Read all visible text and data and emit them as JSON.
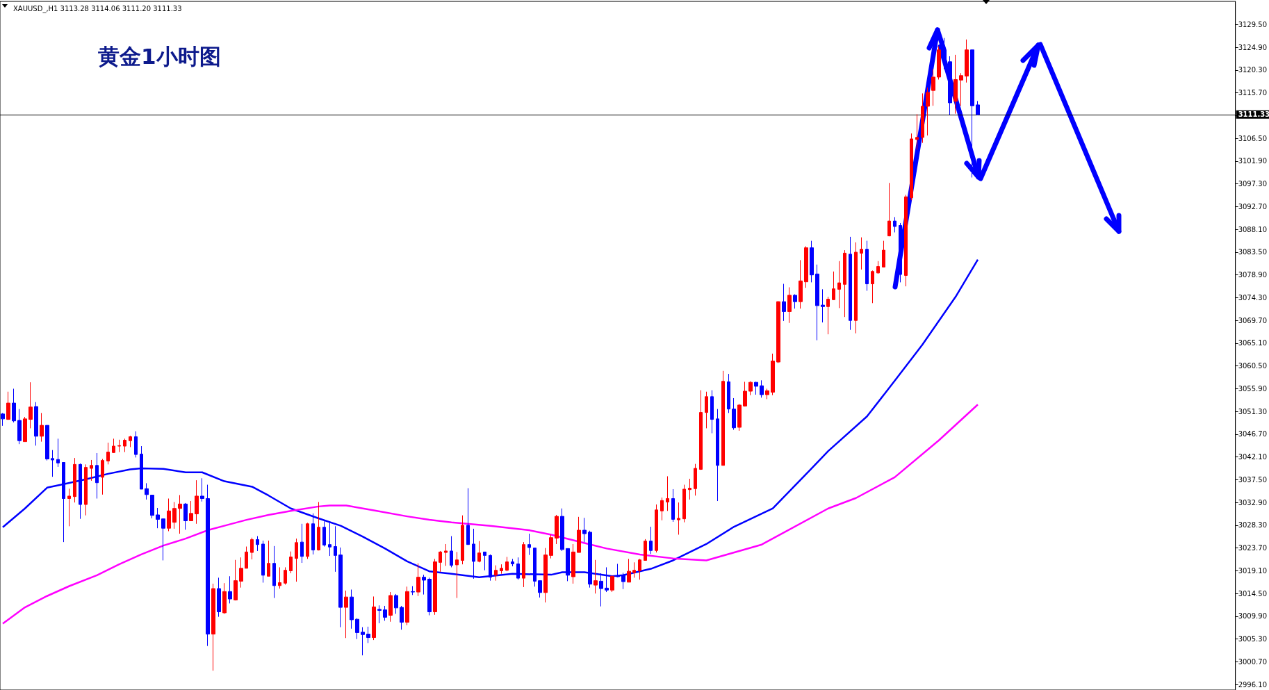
{
  "chart_data": {
    "type": "candlestick",
    "title": "黄金1小时图",
    "subtitle": "XAUUSD_,H1 3113.28 3114.06 3111.20 3111.33",
    "categories": [
      null,
      null,
      null,
      null,
      null,
      null,
      null,
      null,
      null,
      null,
      null,
      null,
      null,
      null,
      null,
      null,
      null,
      null,
      null,
      null,
      null,
      null,
      null,
      null,
      null,
      null,
      null,
      null,
      null,
      null,
      null,
      null,
      null,
      null,
      null,
      null,
      null,
      null,
      null,
      null,
      null,
      null,
      null,
      null,
      null,
      null,
      null,
      null,
      null,
      null,
      null,
      null,
      null,
      null,
      null,
      null,
      null,
      null,
      null,
      null,
      null,
      null,
      null,
      null,
      null,
      null,
      null,
      null,
      null,
      null,
      null,
      null,
      null,
      null,
      null,
      null,
      null,
      null,
      null,
      null,
      null,
      null,
      null,
      null,
      null,
      null,
      null,
      null,
      null,
      null,
      null,
      null,
      null,
      null,
      null,
      null,
      null,
      null,
      null,
      null,
      null,
      null,
      null,
      null,
      null,
      null,
      null,
      null,
      null,
      null,
      null,
      null,
      null,
      null,
      null,
      null,
      null,
      null,
      null,
      null,
      null,
      null,
      null,
      null,
      null,
      null,
      null,
      null,
      null,
      null,
      null,
      null,
      null,
      null,
      null,
      null,
      null,
      null,
      null,
      null,
      null,
      null,
      null,
      null,
      null,
      null,
      null,
      null,
      null,
      null,
      null,
      null,
      null,
      null,
      null,
      null,
      null,
      null,
      null,
      null,
      null,
      null,
      null,
      null,
      null,
      null,
      null,
      null,
      null,
      null,
      null,
      null,
      null,
      null,
      null,
      null,
      null,
      null,
      null,
      null,
      null,
      null,
      null,
      null,
      null,
      null,
      null,
      null,
      null,
      null,
      null,
      null,
      null,
      null,
      null,
      null,
      null,
      null,
      null,
      null,
      null,
      null,
      null,
      null,
      null,
      null,
      null,
      null,
      null,
      null,
      null,
      null,
      null,
      null,
      null,
      null,
      null,
      null,
      null,
      null,
      null,
      null,
      null
    ],
    "series": [
      {
        "ohlc": [
          [
            3050.8,
            3051.0,
            3048.4,
            3049.8
          ],
          [
            3049.7,
            3055.3,
            3049.6,
            3053.0
          ],
          [
            3053.0,
            3055.9,
            3049.1,
            3049.4
          ],
          [
            3049.5,
            3051.8,
            3044.7,
            3045.4
          ],
          [
            3045.2,
            3050.2,
            3045.2,
            3049.8
          ],
          [
            3049.7,
            3057.2,
            3047.9,
            3052.2
          ],
          [
            3052.3,
            3053.2,
            3044.4,
            3046.3
          ],
          [
            3046.3,
            3051.0,
            3045.2,
            3048.5
          ],
          [
            3048.5,
            3048.5,
            3041.4,
            3041.7
          ],
          [
            3041.8,
            3043.5,
            3038.1,
            3041.5
          ],
          [
            3041.6,
            3045.8,
            3040.1,
            3040.9
          ],
          [
            3041.0,
            3041.0,
            3024.9,
            3033.7
          ],
          [
            3033.7,
            3035.7,
            3028.1,
            3034.2
          ],
          [
            3034.1,
            3041.9,
            3032.9,
            3040.6
          ],
          [
            3040.6,
            3040.8,
            3029.6,
            3032.5
          ],
          [
            3032.5,
            3040.6,
            3030.3,
            3040.0
          ],
          [
            3039.8,
            3041.5,
            3037.3,
            3040.4
          ],
          [
            3040.4,
            3042.9,
            3033.7,
            3036.9
          ],
          [
            3038.0,
            3041.7,
            3034.5,
            3041.4
          ],
          [
            3041.3,
            3045.0,
            3040.6,
            3043.1
          ],
          [
            3043.0,
            3045.8,
            3042.9,
            3044.3
          ],
          [
            3044.3,
            3045.6,
            3043.1,
            3044.4
          ],
          [
            3044.3,
            3045.8,
            3043.1,
            3045.5
          ],
          [
            3045.4,
            3046.4,
            3044.1,
            3046.2
          ],
          [
            3046.2,
            3047.3,
            3042.0,
            3042.6
          ],
          [
            3042.7,
            3044.3,
            3035.6,
            3035.6
          ],
          [
            3035.7,
            3036.8,
            3033.5,
            3034.5
          ],
          [
            3034.4,
            3034.4,
            3029.7,
            3030.3
          ],
          [
            3030.4,
            3031.8,
            3027.7,
            3029.5
          ],
          [
            3029.6,
            3029.6,
            3021.2,
            3027.7
          ],
          [
            3027.7,
            3033.7,
            3027.1,
            3031.2
          ],
          [
            3028.9,
            3033.0,
            3027.6,
            3031.7
          ],
          [
            3031.7,
            3034.4,
            3026.6,
            3032.6
          ],
          [
            3032.6,
            3032.8,
            3027.4,
            3029.2
          ],
          [
            3029.2,
            3033.2,
            3029.2,
            3030.7
          ],
          [
            3030.6,
            3037.4,
            3028.6,
            3034.2
          ],
          [
            3034.2,
            3037.8,
            3033.1,
            3033.7
          ],
          [
            3033.7,
            3036.5,
            3003.9,
            3006.3
          ],
          [
            3006.3,
            3016.5,
            2998.9,
            3015.5
          ],
          [
            3015.5,
            3017.7,
            3009.8,
            3010.8
          ],
          [
            3010.6,
            3016.6,
            3010.4,
            3014.9
          ],
          [
            3014.9,
            3018.0,
            3012.5,
            3013.4
          ],
          [
            3013.2,
            3021.3,
            3013.1,
            3017.1
          ],
          [
            3017.0,
            3021.8,
            3015.7,
            3019.6
          ],
          [
            3019.6,
            3024.0,
            3019.6,
            3022.9
          ],
          [
            3022.8,
            3025.8,
            3021.4,
            3025.4
          ],
          [
            3025.4,
            3026.1,
            3023.1,
            3024.4
          ],
          [
            3024.5,
            3025.2,
            3016.7,
            3018.2
          ],
          [
            3018.0,
            3025.2,
            3018.0,
            3020.6
          ],
          [
            3020.6,
            3024.1,
            3013.6,
            3016.1
          ],
          [
            3016.1,
            3019.8,
            3015.5,
            3016.7
          ],
          [
            3016.6,
            3019.8,
            3016.3,
            3019.2
          ],
          [
            3019.1,
            3023.0,
            3018.6,
            3021.9
          ],
          [
            3021.6,
            3025.6,
            3016.9,
            3024.8
          ],
          [
            3024.9,
            3028.6,
            3020.7,
            3022.0
          ],
          [
            3022.0,
            3028.8,
            3021.5,
            3028.6
          ],
          [
            3028.6,
            3030.7,
            3022.4,
            3023.3
          ],
          [
            3023.3,
            3033.0,
            3023.2,
            3027.9
          ],
          [
            3027.9,
            3029.1,
            3024.0,
            3024.3
          ],
          [
            3024.4,
            3028.9,
            3022.1,
            3023.9
          ],
          [
            3024.0,
            3028.1,
            3018.9,
            3022.2
          ],
          [
            3022.3,
            3023.8,
            3007.7,
            3011.7
          ],
          [
            3011.7,
            3015.1,
            3005.5,
            3013.8
          ],
          [
            3013.8,
            3015.3,
            3007.4,
            3009.2
          ],
          [
            3009.3,
            3009.5,
            3005.3,
            3006.6
          ],
          [
            3006.7,
            3007.7,
            3002.0,
            3006.2
          ],
          [
            3006.3,
            3007.8,
            3004.5,
            3005.6
          ],
          [
            3005.6,
            3013.9,
            3005.1,
            3011.8
          ],
          [
            3011.3,
            3012.1,
            3008.5,
            3011.1
          ],
          [
            3011.2,
            3012.0,
            3009.0,
            3009.7
          ],
          [
            3010.1,
            3014.8,
            3008.8,
            3014.1
          ],
          [
            3014.1,
            3014.4,
            3010.4,
            3011.6
          ],
          [
            3011.7,
            3012.0,
            3007.2,
            3008.7
          ],
          [
            3008.7,
            3015.9,
            3008.1,
            3014.9
          ],
          [
            3014.9,
            3016.0,
            3014.2,
            3014.8
          ],
          [
            3014.8,
            3020.6,
            3014.0,
            3017.8
          ],
          [
            3017.8,
            3018.3,
            3014.3,
            3017.2
          ],
          [
            3017.4,
            3017.7,
            3010.1,
            3010.8
          ],
          [
            3010.8,
            3021.5,
            3010.2,
            3020.9
          ],
          [
            3020.8,
            3023.1,
            3018.9,
            3022.9
          ],
          [
            3022.8,
            3024.5,
            3020.1,
            3023.1
          ],
          [
            3023.1,
            3026.1,
            3019.8,
            3020.2
          ],
          [
            3020.3,
            3022.9,
            3013.6,
            3021.3
          ],
          [
            3021.2,
            3030.3,
            3020.4,
            3028.3
          ],
          [
            3028.3,
            3035.8,
            3024.4,
            3024.4
          ],
          [
            3024.5,
            3027.6,
            3017.5,
            3021.0
          ],
          [
            3021.0,
            3025.1,
            3020.8,
            3022.7
          ],
          [
            3022.9,
            3022.9,
            3019.2,
            3022.2
          ],
          [
            3022.2,
            3022.4,
            3017.1,
            3017.8
          ],
          [
            3018.2,
            3020.2,
            3017.1,
            3019.2
          ],
          [
            3019.1,
            3020.4,
            3018.5,
            3019.6
          ],
          [
            3019.2,
            3021.9,
            3019.0,
            3020.9
          ],
          [
            3020.9,
            3021.5,
            3020.0,
            3020.5
          ],
          [
            3020.5,
            3021.8,
            3017.3,
            3017.6
          ],
          [
            3017.6,
            3024.9,
            3015.8,
            3024.4
          ],
          [
            3024.4,
            3026.6,
            3022.3,
            3023.8
          ],
          [
            3023.7,
            3023.7,
            3015.9,
            3017.0
          ],
          [
            3017.1,
            3017.1,
            3013.7,
            3014.7
          ],
          [
            3014.7,
            3023.7,
            3012.7,
            3022.3
          ],
          [
            3022.2,
            3026.4,
            3021.6,
            3025.8
          ],
          [
            3025.7,
            3030.4,
            3024.5,
            3030.1
          ],
          [
            3030.1,
            3031.7,
            3023.1,
            3023.4
          ],
          [
            3023.6,
            3023.6,
            3017.0,
            3018.2
          ],
          [
            3017.9,
            3024.5,
            3016.5,
            3022.9
          ],
          [
            3022.8,
            3030.0,
            3022.8,
            3027.3
          ],
          [
            3027.3,
            3029.8,
            3024.9,
            3026.6
          ],
          [
            3026.9,
            3027.2,
            3015.7,
            3016.4
          ],
          [
            3016.2,
            3021.3,
            3014.5,
            3017.1
          ],
          [
            3017.0,
            3018.6,
            3011.9,
            3015.5
          ],
          [
            3015.6,
            3019.8,
            3014.8,
            3015.2
          ],
          [
            3015.2,
            3018.1,
            3014.8,
            3018.0
          ],
          [
            3018.1,
            3020.5,
            3017.8,
            3017.9
          ],
          [
            3018.2,
            3018.7,
            3015.4,
            3016.9
          ],
          [
            3016.8,
            3021.5,
            3016.8,
            3019.0
          ],
          [
            3018.7,
            3020.8,
            3017.7,
            3019.2
          ],
          [
            3019.1,
            3021.5,
            3017.3,
            3021.3
          ],
          [
            3021.2,
            3025.5,
            3021.2,
            3025.1
          ],
          [
            3025.1,
            3028.0,
            3022.5,
            3023.2
          ],
          [
            3023.2,
            3032.5,
            3022.8,
            3031.4
          ],
          [
            3031.2,
            3033.9,
            3029.3,
            3033.3
          ],
          [
            3033.0,
            3038.2,
            3031.2,
            3033.7
          ],
          [
            3033.7,
            3035.6,
            3029.0,
            3029.5
          ],
          [
            3029.4,
            3032.9,
            3026.4,
            3029.7
          ],
          [
            3029.6,
            3036.5,
            3028.9,
            3035.6
          ],
          [
            3035.5,
            3037.7,
            3033.5,
            3035.8
          ],
          [
            3035.7,
            3040.7,
            3034.3,
            3039.8
          ],
          [
            3039.6,
            3055.6,
            3039.5,
            3051.1
          ],
          [
            3051.1,
            3055.3,
            3047.9,
            3054.3
          ],
          [
            3054.3,
            3055.6,
            3046.9,
            3049.7
          ],
          [
            3049.8,
            3051.8,
            3033.2,
            3040.4
          ],
          [
            3040.4,
            3059.5,
            3040.4,
            3057.4
          ],
          [
            3057.3,
            3058.9,
            3051.0,
            3051.8
          ],
          [
            3051.8,
            3054.0,
            3047.6,
            3048.0
          ],
          [
            3048.1,
            3052.8,
            3047.4,
            3052.6
          ],
          [
            3052.4,
            3057.3,
            3052.3,
            3055.4
          ],
          [
            3055.4,
            3057.4,
            3054.6,
            3057.2
          ],
          [
            3057.2,
            3057.3,
            3054.7,
            3056.4
          ],
          [
            3056.5,
            3057.6,
            3054.1,
            3054.7
          ],
          [
            3054.7,
            3055.9,
            3053.8,
            3055.5
          ],
          [
            3055.2,
            3063.0,
            3054.6,
            3061.5
          ],
          [
            3061.3,
            3073.6,
            3061.1,
            3073.5
          ],
          [
            3073.5,
            3077.1,
            3069.6,
            3071.5
          ],
          [
            3071.5,
            3076.4,
            3069.2,
            3074.8
          ],
          [
            3074.8,
            3075.0,
            3072.1,
            3073.5
          ],
          [
            3073.5,
            3081.9,
            3072.1,
            3077.7
          ],
          [
            3077.5,
            3084.7,
            3076.3,
            3084.4
          ],
          [
            3084.4,
            3085.8,
            3077.4,
            3078.9
          ],
          [
            3079.1,
            3081.0,
            3065.7,
            3072.7
          ],
          [
            3072.8,
            3076.0,
            3069.3,
            3072.5
          ],
          [
            3072.5,
            3074.5,
            3066.9,
            3074.0
          ],
          [
            3073.9,
            3079.6,
            3073.8,
            3076.1
          ],
          [
            3076.0,
            3081.7,
            3072.2,
            3077.3
          ],
          [
            3077.0,
            3083.9,
            3070.4,
            3083.3
          ],
          [
            3083.1,
            3086.6,
            3067.8,
            3069.7
          ],
          [
            3069.7,
            3085.5,
            3067.1,
            3083.5
          ],
          [
            3083.3,
            3086.5,
            3080.0,
            3084.1
          ],
          [
            3084.1,
            3085.8,
            3075.7,
            3077.1
          ],
          [
            3077.1,
            3079.8,
            3073.2,
            3079.6
          ],
          [
            3079.3,
            3081.7,
            3079.2,
            3080.6
          ],
          [
            3080.5,
            3085.8,
            3080.5,
            3083.9
          ],
          [
            3086.8,
            3097.5,
            3086.7,
            3089.8
          ],
          [
            3089.8,
            3090.6,
            3087.5,
            3088.7
          ],
          [
            3088.9,
            3089.4,
            3077.4,
            3079.0
          ],
          [
            3078.8,
            3095.1,
            3076.6,
            3094.7
          ],
          [
            3094.5,
            3107.5,
            3094.0,
            3106.4
          ],
          [
            3106.3,
            3111.4,
            3104.2,
            3106.7
          ],
          [
            3106.7,
            3115.6,
            3105.6,
            3113.0
          ],
          [
            3113.0,
            3116.8,
            3107.1,
            3115.8
          ],
          [
            3116.2,
            3120.5,
            3113.1,
            3118.9
          ],
          [
            3118.9,
            3125.1,
            3118.4,
            3124.4
          ],
          [
            3124.4,
            3126.8,
            3120.5,
            3121.9
          ],
          [
            3122.0,
            3123.1,
            3111.3,
            3113.7
          ],
          [
            3114.0,
            3123.4,
            3111.5,
            3118.4
          ],
          [
            3118.3,
            3119.7,
            3113.1,
            3119.2
          ],
          [
            3119.1,
            3126.5,
            3117.8,
            3124.4
          ],
          [
            3124.4,
            3124.4,
            3098.6,
            3113.1
          ],
          [
            3113.28,
            3114.06,
            3111.2,
            3111.33
          ],
          null,
          null,
          null,
          null,
          null,
          null,
          null,
          null,
          null,
          null,
          null,
          null,
          null,
          null,
          null,
          null,
          null,
          null,
          null,
          null,
          null,
          null,
          null,
          null,
          null,
          null,
          null,
          null,
          null,
          null,
          null,
          null,
          null,
          null,
          null,
          null,
          null,
          null,
          null,
          null,
          null,
          null,
          null,
          null,
          null,
          null
        ],
        "colors": [
          "#0000ff",
          "#ff0000",
          "#0000ff",
          "#0000ff",
          "#ff0000",
          "#ff0000",
          "#0000ff",
          "#ff0000",
          "#0000ff",
          "#0000ff",
          "#0000ff",
          "#0000ff",
          "#ff0000",
          "#ff0000",
          "#0000ff",
          "#ff0000",
          "#ff0000",
          "#0000ff",
          "#ff0000",
          "#ff0000",
          "#ff0000",
          "#ff0000",
          "#ff0000",
          "#ff0000",
          "#0000ff",
          "#0000ff",
          "#0000ff",
          "#0000ff",
          "#0000ff",
          "#0000ff",
          "#ff0000",
          "#ff0000",
          "#ff0000",
          "#0000ff",
          "#ff0000",
          "#ff0000",
          "#0000ff",
          "#0000ff",
          "#ff0000",
          "#0000ff",
          "#ff0000",
          "#0000ff",
          "#ff0000",
          "#ff0000",
          "#ff0000",
          "#ff0000",
          "#0000ff",
          "#0000ff",
          "#ff0000",
          "#0000ff",
          "#ff0000",
          "#ff0000",
          "#ff0000",
          "#ff0000",
          "#0000ff",
          "#ff0000",
          "#0000ff",
          "#ff0000",
          "#0000ff",
          "#0000ff",
          "#0000ff",
          "#0000ff",
          "#ff0000",
          "#0000ff",
          "#0000ff",
          "#0000ff",
          "#0000ff",
          "#ff0000",
          "#0000ff",
          "#0000ff",
          "#ff0000",
          "#0000ff",
          "#0000ff",
          "#ff0000",
          "#0000ff",
          "#ff0000",
          "#0000ff",
          "#0000ff",
          "#ff0000",
          "#ff0000",
          "#ff0000",
          "#0000ff",
          "#ff0000",
          "#ff0000",
          "#0000ff",
          "#0000ff",
          "#ff0000",
          "#0000ff",
          "#0000ff",
          "#ff0000",
          "#ff0000",
          "#ff0000",
          "#0000ff",
          "#0000ff",
          "#ff0000",
          "#0000ff",
          "#0000ff",
          "#0000ff",
          "#ff0000",
          "#ff0000",
          "#ff0000",
          "#0000ff",
          "#0000ff",
          "#ff0000",
          "#ff0000",
          "#0000ff",
          "#0000ff",
          "#ff0000",
          "#0000ff",
          "#0000ff",
          "#ff0000",
          "#0000ff",
          "#0000ff",
          "#ff0000",
          "#ff0000",
          "#ff0000",
          "#ff0000",
          "#0000ff",
          "#ff0000",
          "#ff0000",
          "#ff0000",
          "#0000ff",
          "#ff0000",
          "#ff0000",
          "#ff0000",
          "#ff0000",
          "#ff0000",
          "#ff0000",
          "#0000ff",
          "#0000ff",
          "#ff0000",
          "#0000ff",
          "#0000ff",
          "#ff0000",
          "#ff0000",
          "#ff0000",
          "#0000ff",
          "#0000ff",
          "#ff0000",
          "#ff0000",
          "#ff0000",
          "#0000ff",
          "#ff0000",
          "#0000ff",
          "#ff0000",
          "#ff0000",
          "#0000ff",
          "#0000ff",
          "#0000ff",
          "#ff0000",
          "#ff0000",
          "#ff0000",
          "#ff0000",
          "#0000ff",
          "#ff0000",
          "#ff0000",
          "#0000ff",
          "#ff0000",
          "#ff0000",
          "#ff0000",
          "#ff0000",
          "#0000ff",
          "#0000ff",
          "#ff0000",
          "#ff0000",
          "#ff0000",
          "#ff0000",
          "#ff0000",
          "#ff0000",
          "#ff0000",
          "#0000ff",
          "#0000ff",
          "#ff0000",
          "#ff0000",
          "#ff0000",
          "#0000ff",
          "#0000ff",
          null,
          null,
          null,
          null,
          null,
          null,
          null,
          null,
          null,
          null,
          null,
          null,
          null,
          null,
          null,
          null,
          null,
          null,
          null,
          null,
          null,
          null,
          null,
          null,
          null,
          null,
          null,
          null,
          null,
          null,
          null,
          null,
          null,
          null,
          null,
          null,
          null,
          null,
          null,
          null,
          null,
          null,
          null,
          null,
          null,
          null
        ]
      },
      {
        "type": "line",
        "color": "#0000ff",
        "values": [
          3027.9,
          null,
          null,
          null,
          3031.7,
          null,
          null,
          null,
          3035.9,
          null,
          null,
          3036.6,
          null,
          null,
          null,
          3037.6,
          null,
          null,
          null,
          3038.7,
          null,
          null,
          null,
          3039.6,
          null,
          3039.8,
          null,
          null,
          null,
          3039.7,
          null,
          null,
          null,
          3039.0,
          null,
          null,
          3039.0,
          null,
          null,
          null,
          3037.2,
          null,
          null,
          null,
          null,
          3036.1,
          null,
          null,
          3034.3,
          null,
          null,
          null,
          3031.7,
          null,
          null,
          null,
          null,
          3029.7,
          null,
          null,
          null,
          3028.2,
          null,
          null,
          null,
          3026.0,
          null,
          null,
          null,
          3023.6,
          null,
          null,
          null,
          3021.0,
          null,
          null,
          null,
          3019.0,
          null,
          null,
          null,
          3018.5,
          null,
          null,
          null,
          null,
          3017.8,
          null,
          null,
          null,
          null,
          null,
          3018.5,
          null,
          null,
          null,
          null,
          null,
          null,
          3018.3,
          null,
          3018.8,
          null,
          null,
          null,
          3018.8,
          null,
          null,
          null,
          null,
          3018.0,
          null,
          3018.2,
          null,
          null,
          null,
          null,
          3019.5,
          null,
          null,
          null,
          3021.2,
          null,
          null,
          null,
          null,
          null,
          3024.5,
          null,
          null,
          null,
          null,
          3028.0,
          null,
          null,
          null,
          null,
          null,
          null,
          3031.7,
          null,
          null,
          null,
          null,
          null,
          null,
          3039.8,
          null,
          null,
          3043.3,
          null,
          null,
          null,
          null,
          null,
          null,
          3050.3,
          null,
          null,
          null,
          null,
          3057.5,
          null,
          null,
          null,
          null,
          3064.8,
          null,
          null,
          null,
          null,
          null,
          3074.5,
          null,
          null,
          null,
          3082.0,
          null,
          null,
          null,
          null,
          null,
          null,
          null,
          null,
          null,
          null,
          null,
          null,
          null,
          null,
          null,
          null,
          null,
          null,
          null,
          null,
          null,
          null,
          null,
          null,
          null,
          null,
          null,
          null,
          null,
          null,
          null,
          null,
          null,
          null,
          null,
          null,
          null,
          null,
          null,
          null,
          null,
          null,
          null,
          null,
          null,
          null
        ]
      },
      {
        "type": "line",
        "color": "#ff00ff",
        "values": [
          3008.4,
          null,
          null,
          null,
          3011.7,
          null,
          null,
          null,
          3014.0,
          null,
          null,
          null,
          3016.0,
          null,
          null,
          null,
          null,
          3018.2,
          null,
          null,
          null,
          3020.4,
          null,
          null,
          null,
          3022.4,
          null,
          null,
          null,
          3024.2,
          null,
          null,
          null,
          3025.6,
          null,
          null,
          null,
          3027.3,
          null,
          null,
          3028.2,
          null,
          null,
          null,
          3029.4,
          null,
          null,
          null,
          3030.4,
          null,
          null,
          null,
          3031.2,
          null,
          null,
          null,
          null,
          3032.1,
          null,
          3032.3,
          null,
          null,
          3032.3,
          null,
          null,
          null,
          null,
          3031.3,
          null,
          null,
          null,
          null,
          null,
          3030.1,
          null,
          null,
          null,
          3029.4,
          null,
          null,
          null,
          3028.9,
          null,
          null,
          null,
          null,
          null,
          null,
          3028.2,
          null,
          null,
          null,
          null,
          null,
          null,
          3027.3,
          null,
          null,
          null,
          3026.4,
          null,
          null,
          null,
          null,
          null,
          3024.7,
          null,
          null,
          null,
          3023.6,
          null,
          null,
          null,
          null,
          null,
          3022.4,
          null,
          null,
          null,
          null,
          null,
          3021.6,
          null,
          null,
          null,
          null,
          null,
          3021.2,
          null,
          null,
          null,
          null,
          null,
          null,
          null,
          null,
          null,
          3024.4,
          null,
          null,
          null,
          null,
          null,
          null,
          null,
          null,
          null,
          null,
          null,
          3031.7,
          null,
          null,
          null,
          null,
          3033.8,
          null,
          null,
          null,
          null,
          null,
          null,
          3038.0,
          null,
          null,
          null,
          null,
          null,
          null,
          null,
          3045.5,
          null,
          null,
          null,
          null,
          null,
          null,
          3052.7,
          null,
          null,
          null,
          null,
          null,
          null,
          null,
          null,
          null,
          null,
          null,
          null,
          null,
          null,
          null,
          null,
          null,
          null,
          null,
          null,
          null,
          null,
          null,
          null,
          null,
          null,
          null,
          null,
          null,
          null,
          null,
          null,
          null,
          null,
          null,
          null,
          null,
          null,
          null,
          null,
          null,
          null,
          null,
          null,
          null,
          null
        ]
      }
    ],
    "ylim": [
      2995.0,
      3134.2
    ],
    "yticks": [
      {
        "value": 2996.1,
        "label": "2996.10"
      },
      {
        "value": 3000.7,
        "label": "3000.70"
      },
      {
        "value": 3005.3,
        "label": "3005.30"
      },
      {
        "value": 3009.9,
        "label": "3009.90"
      },
      {
        "value": 3014.5,
        "label": "3014.50"
      },
      {
        "value": 3019.1,
        "label": "3019.10"
      },
      {
        "value": 3023.7,
        "label": "3023.70"
      },
      {
        "value": 3028.3,
        "label": "3028.30"
      },
      {
        "value": 3032.9,
        "label": "3032.90"
      },
      {
        "value": 3037.5,
        "label": "3037.50"
      },
      {
        "value": 3042.1,
        "label": "3042.10"
      },
      {
        "value": 3046.7,
        "label": "3046.70"
      },
      {
        "value": 3051.3,
        "label": "3051.30"
      },
      {
        "value": 3055.9,
        "label": "3055.90"
      },
      {
        "value": 3060.5,
        "label": "3060.50"
      },
      {
        "value": 3065.1,
        "label": "3065.10"
      },
      {
        "value": 3069.7,
        "label": "3069.70"
      },
      {
        "value": 3074.3,
        "label": "3074.30"
      },
      {
        "value": 3078.9,
        "label": "3078.90"
      },
      {
        "value": 3083.5,
        "label": "3083.50"
      },
      {
        "value": 3088.1,
        "label": "3088.10"
      },
      {
        "value": 3092.7,
        "label": "3092.70"
      },
      {
        "value": 3097.3,
        "label": "3097.30"
      },
      {
        "value": 3101.9,
        "label": "3101.90"
      },
      {
        "value": 3106.5,
        "label": "3106.50"
      },
      {
        "value": 3111.1,
        "label": null
      },
      {
        "value": 3115.7,
        "label": "3115.70"
      },
      {
        "value": 3120.3,
        "label": "3120.30"
      },
      {
        "value": 3124.9,
        "label": "3124.90"
      },
      {
        "value": 3129.5,
        "label": "3129.50"
      }
    ],
    "ref_lines": [
      {
        "axis": "y",
        "value": 3111.33,
        "label": "3111.33",
        "color": "#000000"
      }
    ],
    "tick_labels": "y"
  }
}
